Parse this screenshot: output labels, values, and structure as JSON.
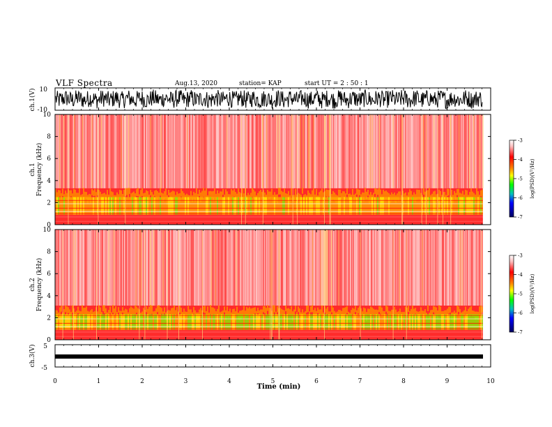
{
  "header": {
    "title": "VLF Spectra",
    "date": "Aug.13, 2020",
    "station": "station= KAP",
    "start": "start  UT =  2 : 50 : 1"
  },
  "chart_data": [
    {
      "type": "line",
      "panel": "ch1-waveform",
      "ylabel": "ch.1(V)",
      "ylim": [
        -10,
        10
      ],
      "y_tick_labels": [
        "10",
        "-10"
      ],
      "xlim": [
        0,
        10
      ],
      "description": "dense noisy waveform spanning nearly full range"
    },
    {
      "type": "heatmap",
      "panel": "ch1-spectrogram",
      "ylabel": "ch.1\nFrequency (kHz)",
      "ylim": [
        0,
        10
      ],
      "y_tick_labels": [
        "0",
        "2",
        "4",
        "6",
        "8",
        "10"
      ],
      "xlim": [
        0,
        9.82
      ],
      "colorbar": {
        "label": "log(PSD)(V²/Hz)",
        "range": [
          -7,
          -3
        ],
        "tick_labels": [
          "-3",
          "-4",
          "-5",
          "-6",
          "-7"
        ]
      },
      "features": {
        "upper_band_kHz": [
          3,
          10
        ],
        "lower_band_kHz": [
          0,
          3
        ],
        "band_edge_kHz": 3.0
      }
    },
    {
      "type": "heatmap",
      "panel": "ch2-spectrogram",
      "ylabel": "ch.2\nFrequency (kHz)",
      "ylim": [
        0,
        10
      ],
      "y_tick_labels": [
        "0",
        "2",
        "4",
        "6",
        "8",
        "10"
      ],
      "xlim": [
        0,
        9.82
      ],
      "colorbar": {
        "label": "log(PSD)(V²/Hz)",
        "range": [
          -7,
          -3
        ],
        "tick_labels": [
          "-3",
          "-4",
          "-5",
          "-6",
          "-7"
        ]
      },
      "features": {
        "upper_band_kHz": [
          2.8,
          10
        ],
        "lower_band_kHz": [
          0,
          2.8
        ],
        "band_edge_kHz": 2.8
      }
    },
    {
      "type": "line",
      "panel": "ch3-waveform",
      "ylabel": "ch.3(V)",
      "ylim": [
        -5,
        5
      ],
      "y_tick_labels": [
        "5",
        "-5"
      ],
      "xlim": [
        0,
        10
      ],
      "description": "near-constant thick trace around -1 V"
    }
  ],
  "xaxis": {
    "label": "Time (min)",
    "ticks": [
      0,
      1,
      2,
      3,
      4,
      5,
      6,
      7,
      8,
      9,
      10
    ],
    "tick_labels": [
      "0",
      "1",
      "2",
      "3",
      "4",
      "5",
      "6",
      "7",
      "8",
      "9",
      "10"
    ]
  },
  "colors": {
    "spec_high": "#ff0000",
    "spec_white": "#ffffff",
    "spec_yellow": "#ffff00",
    "spec_green": "#00ff00",
    "spec_blue": "#0000ff",
    "spec_dark": "#000080"
  }
}
